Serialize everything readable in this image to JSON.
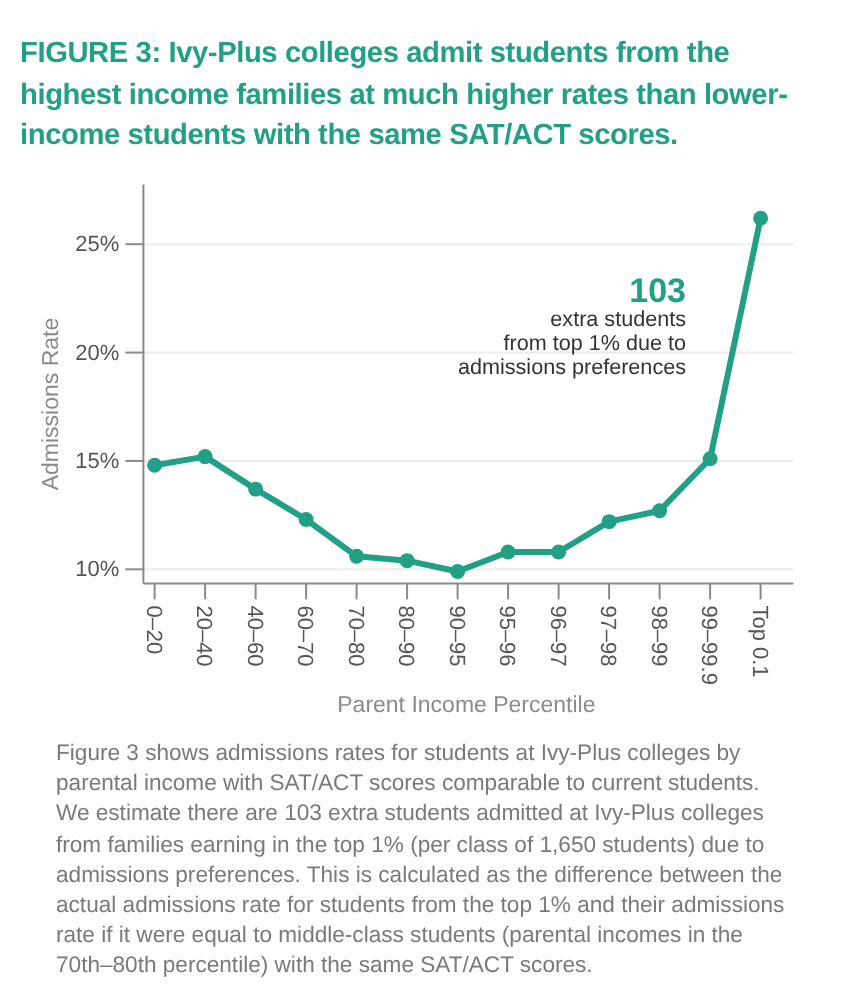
{
  "chart_data": {
    "type": "line",
    "title": "FIGURE 3: Ivy-Plus colleges admit students from the highest income families at much higher rates than lower-income students with the same SAT/ACT scores.",
    "xlabel": "Parent Income Percentile",
    "ylabel": "Admissions Rate",
    "categories": [
      "0–20",
      "20–40",
      "40–60",
      "60–70",
      "70–80",
      "80–90",
      "90–95",
      "95–96",
      "96–97",
      "97–98",
      "98–99",
      "99–99.9",
      "Top 0.1"
    ],
    "values": [
      14.8,
      15.2,
      13.7,
      12.3,
      10.6,
      10.4,
      9.9,
      10.8,
      10.8,
      12.2,
      12.7,
      15.1,
      26.2
    ],
    "color": "#22a085",
    "marker": "circle",
    "grid": "y",
    "ylim": [
      9.35,
      27.75
    ],
    "yticks": [
      {
        "value": 10,
        "label": "10%"
      },
      {
        "value": 15,
        "label": "15%"
      },
      {
        "value": 20,
        "label": "20%"
      },
      {
        "value": 25,
        "label": "25%"
      }
    ],
    "annotations": [
      "103",
      "extra students\nfrom top 1% due to\nadmissions preferences",
      "Figure 3 shows admissions rates for students at Ivy-Plus colleges by parental income with SAT/ACT scores comparable to current students. We estimate there are 103 extra students admitted at Ivy-Plus colleges from families earning in the top 1% (per class of 1,650 students) due to admissions preferences. This is calculated as the difference between the actual admissions rate for students from the top 1% and their admissions rate if it were equal to middle-class students (parental incomes in the 70th–80th percentile) with the same SAT/ACT scores."
    ]
  }
}
